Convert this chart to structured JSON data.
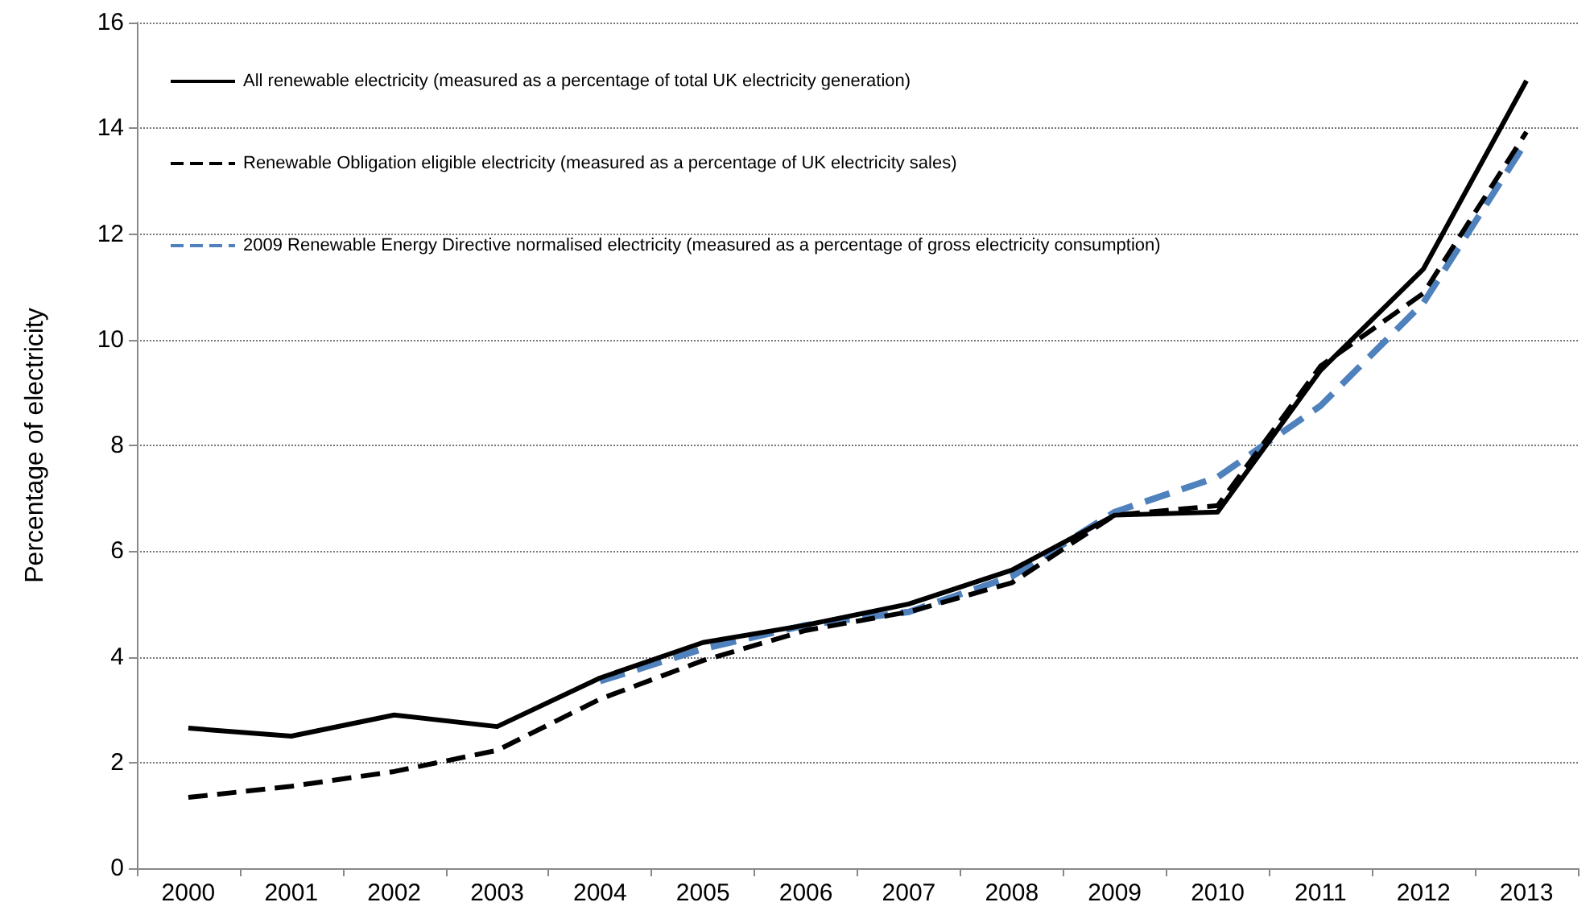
{
  "chart_data": {
    "type": "line",
    "ylabel": "Percentage of electricity",
    "categories": [
      "2000",
      "2001",
      "2002",
      "2003",
      "2004",
      "2005",
      "2006",
      "2007",
      "2008",
      "2009",
      "2010",
      "2011",
      "2012",
      "2013"
    ],
    "ylim": [
      0,
      16
    ],
    "yticks": [
      0,
      2,
      4,
      6,
      8,
      10,
      12,
      14,
      16
    ],
    "grid": "y",
    "legend": "top left",
    "marker": "none",
    "series": [
      {
        "name": "All renewable electricity (measured as a percentage of total UK electricity generation)",
        "color": "#000000",
        "line_style": "solid",
        "values": [
          2.65,
          2.5,
          2.9,
          2.68,
          3.6,
          4.27,
          4.6,
          5.0,
          5.64,
          6.68,
          6.74,
          9.42,
          11.34,
          14.9
        ]
      },
      {
        "name": "Renewable Obligation eligible electricity (measured as a percentage of UK electricity sales)",
        "color": "#000000",
        "line_style": "dashed",
        "values": [
          1.34,
          1.55,
          1.83,
          2.23,
          3.2,
          3.93,
          4.5,
          4.85,
          5.4,
          6.68,
          6.86,
          9.5,
          10.88,
          13.93
        ]
      },
      {
        "name": "2009 Renewable Energy Directive normalised electricity (measured as a percentage of gross electricity consumption)",
        "color": "#4f81bd",
        "line_style": "dashed",
        "values": [
          null,
          null,
          null,
          null,
          3.54,
          4.15,
          4.6,
          4.85,
          5.52,
          6.74,
          7.4,
          8.75,
          10.7,
          13.75
        ]
      }
    ]
  }
}
